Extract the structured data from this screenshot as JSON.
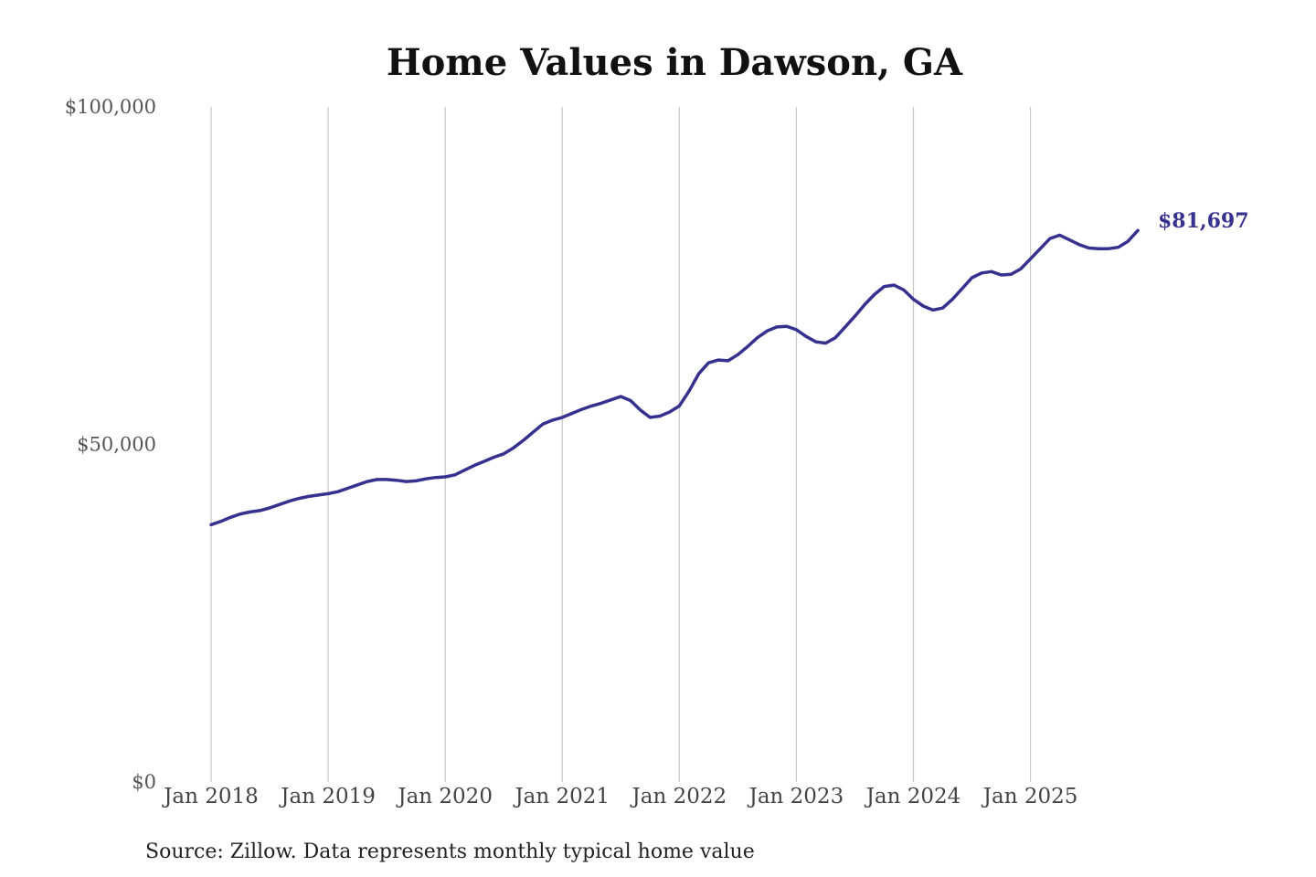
{
  "chart_data": {
    "type": "line",
    "title": "Home Values in Dawson, GA",
    "source": "Source: Zillow. Data represents monthly typical home value",
    "y_ticks": [
      {
        "value": 0,
        "label": "$0"
      },
      {
        "value": 50000,
        "label": "$50,000"
      },
      {
        "value": 100000,
        "label": "$100,000"
      }
    ],
    "x_ticks": [
      {
        "date": "2018-01",
        "label": "Jan 2018"
      },
      {
        "date": "2019-01",
        "label": "Jan 2019"
      },
      {
        "date": "2020-01",
        "label": "Jan 2020"
      },
      {
        "date": "2021-01",
        "label": "Jan 2021"
      },
      {
        "date": "2022-01",
        "label": "Jan 2022"
      },
      {
        "date": "2023-01",
        "label": "Jan 2023"
      },
      {
        "date": "2024-01",
        "label": "Jan 2024"
      },
      {
        "date": "2025-01",
        "label": "Jan 2025"
      }
    ],
    "ylim": [
      0,
      100000
    ],
    "xlim": [
      "2018-01",
      "2025-12"
    ],
    "grid": "vertical",
    "line_color": "#35318f",
    "end_label": "$81,697",
    "series": [
      {
        "x": [
          "2018-01",
          "2018-02",
          "2018-03",
          "2018-04",
          "2018-05",
          "2018-06",
          "2018-07",
          "2018-08",
          "2018-09",
          "2018-10",
          "2018-11",
          "2018-12",
          "2019-01",
          "2019-02",
          "2019-03",
          "2019-04",
          "2019-05",
          "2019-06",
          "2019-07",
          "2019-08",
          "2019-09",
          "2019-10",
          "2019-11",
          "2019-12",
          "2020-01",
          "2020-02",
          "2020-03",
          "2020-04",
          "2020-05",
          "2020-06",
          "2020-07",
          "2020-08",
          "2020-09",
          "2020-10",
          "2020-11",
          "2020-12",
          "2021-01",
          "2021-02",
          "2021-03",
          "2021-04",
          "2021-05",
          "2021-06",
          "2021-07",
          "2021-08",
          "2021-09",
          "2021-10",
          "2021-11",
          "2021-12",
          "2022-01",
          "2022-02",
          "2022-03",
          "2022-04",
          "2022-05",
          "2022-06",
          "2022-07",
          "2022-08",
          "2022-09",
          "2022-10",
          "2022-11",
          "2022-12",
          "2023-01",
          "2023-02",
          "2023-03",
          "2023-04",
          "2023-05",
          "2023-06",
          "2023-07",
          "2023-08",
          "2023-09",
          "2023-10",
          "2023-11",
          "2023-12",
          "2024-01",
          "2024-02",
          "2024-03",
          "2024-04",
          "2024-05",
          "2024-06",
          "2024-07",
          "2024-08",
          "2024-09",
          "2024-10",
          "2024-11",
          "2024-12",
          "2025-01",
          "2025-02",
          "2025-03",
          "2025-04",
          "2025-05",
          "2025-06",
          "2025-07",
          "2025-08",
          "2025-09",
          "2025-10",
          "2025-11",
          "2025-12"
        ],
        "values": [
          38100,
          38600,
          39200,
          39700,
          40000,
          40200,
          40600,
          41100,
          41600,
          42000,
          42300,
          42500,
          42700,
          43000,
          43500,
          44000,
          44500,
          44800,
          44800,
          44700,
          44500,
          44600,
          44900,
          45100,
          45200,
          45500,
          46200,
          46900,
          47500,
          48100,
          48600,
          49500,
          50600,
          51800,
          53000,
          53600,
          54000,
          54600,
          55200,
          55700,
          56100,
          56600,
          57100,
          56500,
          55100,
          54000,
          54200,
          54800,
          55700,
          57900,
          60500,
          62100,
          62500,
          62400,
          63300,
          64500,
          65800,
          66800,
          67400,
          67500,
          67000,
          66000,
          65200,
          65000,
          65800,
          67400,
          69000,
          70700,
          72200,
          73400,
          73600,
          72900,
          71500,
          70500,
          69900,
          70200,
          71500,
          73100,
          74700,
          75400,
          75600,
          75100,
          75200,
          76000,
          77500,
          79000,
          80500,
          81000,
          80300,
          79600,
          79100,
          79000,
          79000,
          79200,
          80100,
          81697
        ]
      }
    ]
  }
}
